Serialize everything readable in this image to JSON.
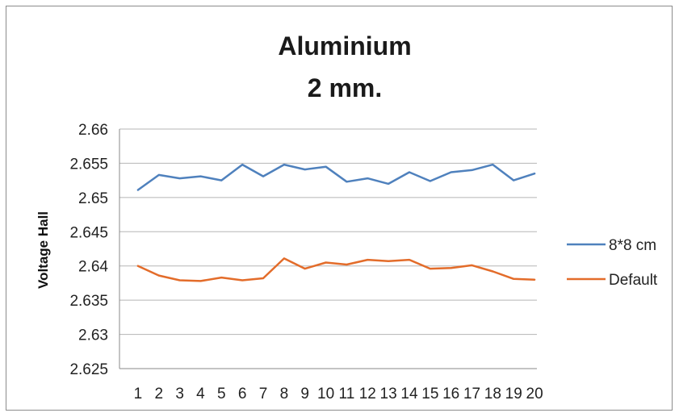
{
  "chart_data": {
    "type": "line",
    "title_lines": [
      "Aluminium",
      "2 mm."
    ],
    "ylabel": "Voltage Hall",
    "xlabel": "",
    "ylim": [
      2.625,
      2.66
    ],
    "y_ticks": [
      "2.625",
      "2.63",
      "2.635",
      "2.64",
      "2.645",
      "2.65",
      "2.655",
      "2.66"
    ],
    "y_tick_values": [
      2.625,
      2.63,
      2.635,
      2.64,
      2.645,
      2.65,
      2.655,
      2.66
    ],
    "categories": [
      "1",
      "2",
      "3",
      "4",
      "5",
      "6",
      "7",
      "8",
      "9",
      "10",
      "11",
      "12",
      "13",
      "14",
      "15",
      "16",
      "17",
      "18",
      "19",
      "20"
    ],
    "grid": "horizontal",
    "legend_position": "right",
    "series": [
      {
        "name": "8*8 cm",
        "color": "#4f81bd",
        "values": [
          2.6511,
          2.6533,
          2.6528,
          2.6531,
          2.6525,
          2.6548,
          2.6531,
          2.6548,
          2.6541,
          2.6545,
          2.6523,
          2.6528,
          2.652,
          2.6537,
          2.6524,
          2.6537,
          2.654,
          2.6548,
          2.6525,
          2.6535
        ]
      },
      {
        "name": "Default",
        "color": "#e36c2a",
        "values": [
          2.64,
          2.6386,
          2.6379,
          2.6378,
          2.6383,
          2.6379,
          2.6382,
          2.6411,
          2.6396,
          2.6405,
          2.6402,
          2.6409,
          2.6407,
          2.6409,
          2.6396,
          2.6397,
          2.6401,
          2.6392,
          2.6381,
          2.638
        ]
      }
    ]
  }
}
